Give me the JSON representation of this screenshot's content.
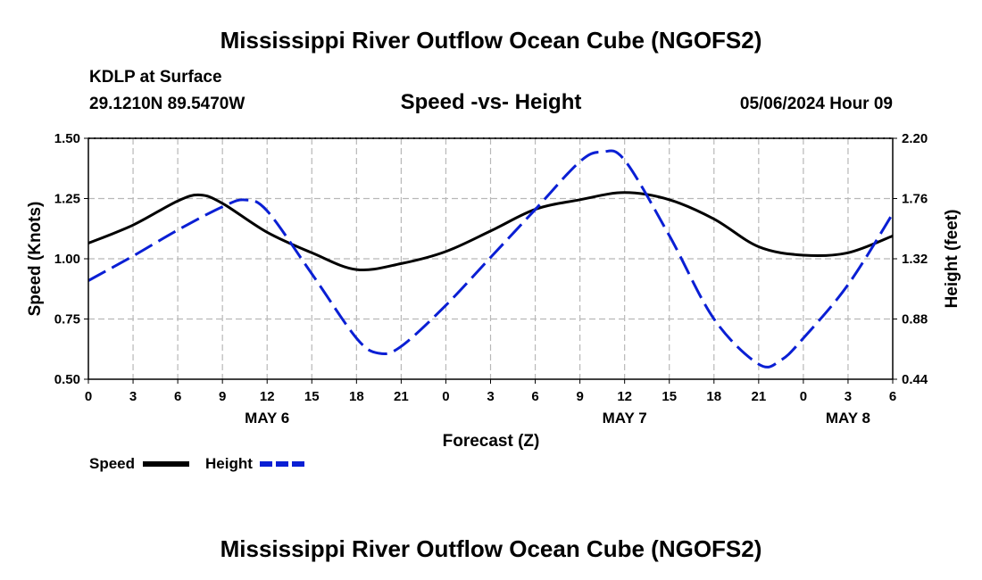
{
  "header": {
    "title": "Mississippi River Outflow Ocean Cube (NGOFS2)",
    "station": "KDLP at Surface",
    "coords": "29.1210N  89.5470W",
    "datetime": "05/06/2024 Hour 09"
  },
  "chart_data": {
    "type": "line",
    "title": "Speed -vs- Height",
    "xlabel": "Forecast (Z)",
    "ylabel": "Speed (Knots)",
    "y2label": "Height (feet)",
    "x_range_hours": [
      0,
      54
    ],
    "x_ticks": [
      {
        "h": 0,
        "label": "0"
      },
      {
        "h": 3,
        "label": "3"
      },
      {
        "h": 6,
        "label": "6"
      },
      {
        "h": 9,
        "label": "9"
      },
      {
        "h": 12,
        "label": "12"
      },
      {
        "h": 15,
        "label": "15"
      },
      {
        "h": 18,
        "label": "18"
      },
      {
        "h": 21,
        "label": "21"
      },
      {
        "h": 24,
        "label": "0"
      },
      {
        "h": 27,
        "label": "3"
      },
      {
        "h": 30,
        "label": "6"
      },
      {
        "h": 33,
        "label": "9"
      },
      {
        "h": 36,
        "label": "12"
      },
      {
        "h": 39,
        "label": "15"
      },
      {
        "h": 42,
        "label": "18"
      },
      {
        "h": 45,
        "label": "21"
      },
      {
        "h": 48,
        "label": "0"
      },
      {
        "h": 51,
        "label": "3"
      },
      {
        "h": 54,
        "label": "6"
      }
    ],
    "date_labels": [
      {
        "h": 12,
        "label": "MAY 6"
      },
      {
        "h": 36,
        "label": "MAY 7"
      },
      {
        "h": 51,
        "label": "MAY 8"
      }
    ],
    "ylim": [
      0.5,
      1.5
    ],
    "y_ticks": [
      "0.50",
      "0.75",
      "1.00",
      "1.25",
      "1.50"
    ],
    "y2lim": [
      0.44,
      2.2
    ],
    "y2_ticks": [
      "0.44",
      "0.88",
      "1.32",
      "1.76",
      "2.20"
    ],
    "grid": true,
    "series": [
      {
        "name": "Speed",
        "axis": "left",
        "color": "#000000",
        "style": "solid",
        "x": [
          0,
          3,
          6,
          7.5,
          9,
          12,
          15,
          18,
          21,
          24,
          27,
          30,
          33,
          36,
          39,
          42,
          45,
          48,
          51,
          54
        ],
        "values": [
          1.065,
          1.14,
          1.24,
          1.265,
          1.23,
          1.11,
          1.025,
          0.955,
          0.98,
          1.03,
          1.115,
          1.205,
          1.245,
          1.275,
          1.245,
          1.165,
          1.05,
          1.015,
          1.025,
          1.095
        ]
      },
      {
        "name": "Height",
        "axis": "right",
        "color": "#0a1fd4",
        "style": "dashed",
        "x": [
          0,
          3,
          6,
          9,
          10.5,
          12,
          15,
          18,
          19.5,
          21,
          24,
          27,
          30,
          33,
          34.5,
          36,
          39,
          42,
          45,
          46.5,
          48,
          51,
          54
        ],
        "values": [
          1.16,
          1.34,
          1.53,
          1.7,
          1.75,
          1.67,
          1.21,
          0.74,
          0.63,
          0.68,
          0.98,
          1.33,
          1.68,
          2.03,
          2.1,
          2.04,
          1.49,
          0.88,
          0.55,
          0.58,
          0.74,
          1.13,
          1.65
        ]
      }
    ]
  }
}
